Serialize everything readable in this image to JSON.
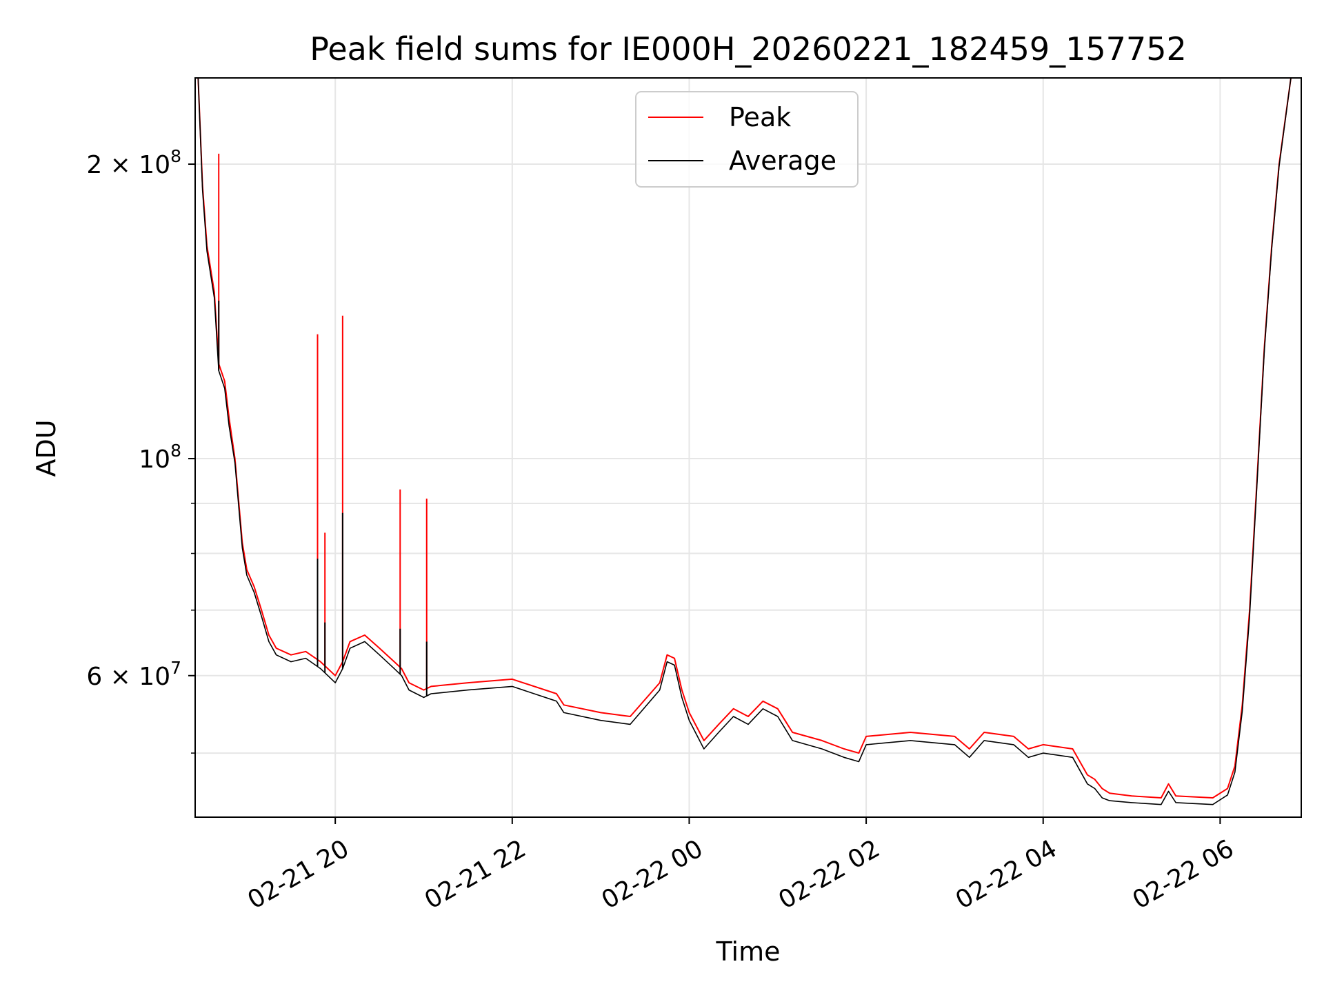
{
  "chart_data": {
    "type": "line",
    "title": "Peak field sums for IE000H_20260221_182459_157752",
    "xlabel": "Time",
    "ylabel": "ADU",
    "y_scale": "log",
    "grid": true,
    "legend_position": "top-center",
    "x_range": [
      "2026-02-21 18:25",
      "2026-02-22 06:55"
    ],
    "ylim": [
      43000000,
      245000000
    ],
    "x_ticks": [
      {
        "value": "2026-02-21 20:00",
        "label": "02-21 20"
      },
      {
        "value": "2026-02-21 22:00",
        "label": "02-21 22"
      },
      {
        "value": "2026-02-22 00:00",
        "label": "02-22 00"
      },
      {
        "value": "2026-02-22 02:00",
        "label": "02-22 02"
      },
      {
        "value": "2026-02-22 04:00",
        "label": "02-22 04"
      },
      {
        "value": "2026-02-22 06:00",
        "label": "02-22 06"
      }
    ],
    "y_ticks": [
      {
        "value": 60000000,
        "mantissa": "6",
        "exponent": "7",
        "form": "m"
      },
      {
        "value": 100000000,
        "exponent": "8",
        "form": "p"
      },
      {
        "value": 200000000,
        "mantissa": "2",
        "exponent": "8",
        "form": "m"
      }
    ],
    "y_minor_ticks": [
      50000000,
      70000000,
      80000000,
      90000000
    ],
    "series": [
      {
        "name": "Peak",
        "color": "#ff0000",
        "points": [
          [
            "2026-02-21 18:27",
            245000000
          ],
          [
            "2026-02-21 18:30",
            190000000
          ],
          [
            "2026-02-21 18:33",
            165000000
          ],
          [
            "2026-02-21 18:38",
            148000000
          ],
          [
            "2026-02-21 18:41",
            125000000
          ],
          [
            "2026-02-21 18:45",
            120000000
          ],
          [
            "2026-02-21 18:48",
            110000000
          ],
          [
            "2026-02-21 18:52",
            100000000
          ],
          [
            "2026-02-21 18:57",
            82000000
          ],
          [
            "2026-02-21 19:00",
            77000000
          ],
          [
            "2026-02-21 19:05",
            74000000
          ],
          [
            "2026-02-21 19:10",
            70000000
          ],
          [
            "2026-02-21 19:15",
            66000000
          ],
          [
            "2026-02-21 19:20",
            64000000
          ],
          [
            "2026-02-21 19:30",
            63000000
          ],
          [
            "2026-02-21 19:40",
            63500000
          ],
          [
            "2026-02-21 19:50",
            62000000
          ],
          [
            "2026-02-21 20:00",
            60000000
          ],
          [
            "2026-02-21 20:05",
            62000000
          ],
          [
            "2026-02-21 20:10",
            65000000
          ],
          [
            "2026-02-21 20:20",
            66000000
          ],
          [
            "2026-02-21 20:30",
            64000000
          ],
          [
            "2026-02-21 20:40",
            62000000
          ],
          [
            "2026-02-21 20:45",
            61000000
          ],
          [
            "2026-02-21 20:50",
            59000000
          ],
          [
            "2026-02-21 21:00",
            58000000
          ],
          [
            "2026-02-21 21:05",
            58500000
          ],
          [
            "2026-02-21 21:30",
            59000000
          ],
          [
            "2026-02-21 22:00",
            59500000
          ],
          [
            "2026-02-21 22:30",
            57500000
          ],
          [
            "2026-02-21 22:35",
            56000000
          ],
          [
            "2026-02-21 23:00",
            55000000
          ],
          [
            "2026-02-21 23:20",
            54500000
          ],
          [
            "2026-02-21 23:40",
            59000000
          ],
          [
            "2026-02-21 23:45",
            63000000
          ],
          [
            "2026-02-21 23:50",
            62500000
          ],
          [
            "2026-02-21 23:55",
            58000000
          ],
          [
            "2026-02-22 00:00",
            55000000
          ],
          [
            "2026-02-22 00:10",
            51500000
          ],
          [
            "2026-02-22 00:20",
            53500000
          ],
          [
            "2026-02-22 00:30",
            55500000
          ],
          [
            "2026-02-22 00:40",
            54500000
          ],
          [
            "2026-02-22 00:50",
            56500000
          ],
          [
            "2026-02-22 01:00",
            55500000
          ],
          [
            "2026-02-22 01:10",
            52500000
          ],
          [
            "2026-02-22 01:30",
            51500000
          ],
          [
            "2026-02-22 01:45",
            50500000
          ],
          [
            "2026-02-22 01:55",
            50000000
          ],
          [
            "2026-02-22 02:00",
            52000000
          ],
          [
            "2026-02-22 02:30",
            52500000
          ],
          [
            "2026-02-22 03:00",
            52000000
          ],
          [
            "2026-02-22 03:10",
            50500000
          ],
          [
            "2026-02-22 03:20",
            52500000
          ],
          [
            "2026-02-22 03:40",
            52000000
          ],
          [
            "2026-02-22 03:50",
            50500000
          ],
          [
            "2026-02-22 04:00",
            51000000
          ],
          [
            "2026-02-22 04:20",
            50500000
          ],
          [
            "2026-02-22 04:30",
            47500000
          ],
          [
            "2026-02-22 04:35",
            47000000
          ],
          [
            "2026-02-22 04:40",
            46000000
          ],
          [
            "2026-02-22 04:45",
            45500000
          ],
          [
            "2026-02-22 05:00",
            45200000
          ],
          [
            "2026-02-22 05:20",
            45000000
          ],
          [
            "2026-02-22 05:25",
            46500000
          ],
          [
            "2026-02-22 05:30",
            45200000
          ],
          [
            "2026-02-22 05:55",
            45000000
          ],
          [
            "2026-02-22 06:05",
            46000000
          ],
          [
            "2026-02-22 06:10",
            48500000
          ],
          [
            "2026-02-22 06:15",
            56000000
          ],
          [
            "2026-02-22 06:20",
            70000000
          ],
          [
            "2026-02-22 06:25",
            95000000
          ],
          [
            "2026-02-22 06:30",
            130000000
          ],
          [
            "2026-02-22 06:35",
            165000000
          ],
          [
            "2026-02-22 06:40",
            200000000
          ],
          [
            "2026-02-22 06:48",
            245000000
          ]
        ],
        "spikes": [
          [
            "2026-02-21 18:41",
            205000000
          ],
          [
            "2026-02-21 19:48",
            134000000
          ],
          [
            "2026-02-21 19:53",
            84000000
          ],
          [
            "2026-02-21 20:05",
            140000000
          ],
          [
            "2026-02-21 20:44",
            93000000
          ],
          [
            "2026-02-21 21:02",
            91000000
          ]
        ]
      },
      {
        "name": "Average",
        "color": "#000000",
        "points": [
          [
            "2026-02-21 18:27",
            245000000
          ],
          [
            "2026-02-21 18:30",
            188000000
          ],
          [
            "2026-02-21 18:33",
            163000000
          ],
          [
            "2026-02-21 18:38",
            146000000
          ],
          [
            "2026-02-21 18:41",
            123000000
          ],
          [
            "2026-02-21 18:45",
            118000000
          ],
          [
            "2026-02-21 18:48",
            108000000
          ],
          [
            "2026-02-21 18:52",
            99000000
          ],
          [
            "2026-02-21 18:57",
            81000000
          ],
          [
            "2026-02-21 19:00",
            76000000
          ],
          [
            "2026-02-21 19:05",
            73000000
          ],
          [
            "2026-02-21 19:10",
            69000000
          ],
          [
            "2026-02-21 19:15",
            65000000
          ],
          [
            "2026-02-21 19:20",
            63000000
          ],
          [
            "2026-02-21 19:30",
            62000000
          ],
          [
            "2026-02-21 19:40",
            62500000
          ],
          [
            "2026-02-21 19:50",
            61000000
          ],
          [
            "2026-02-21 20:00",
            59000000
          ],
          [
            "2026-02-21 20:05",
            61000000
          ],
          [
            "2026-02-21 20:10",
            64000000
          ],
          [
            "2026-02-21 20:20",
            65000000
          ],
          [
            "2026-02-21 20:30",
            63000000
          ],
          [
            "2026-02-21 20:40",
            61000000
          ],
          [
            "2026-02-21 20:45",
            60000000
          ],
          [
            "2026-02-21 20:50",
            58000000
          ],
          [
            "2026-02-21 21:00",
            57000000
          ],
          [
            "2026-02-21 21:05",
            57500000
          ],
          [
            "2026-02-21 21:30",
            58000000
          ],
          [
            "2026-02-21 22:00",
            58500000
          ],
          [
            "2026-02-21 22:30",
            56500000
          ],
          [
            "2026-02-21 22:35",
            55000000
          ],
          [
            "2026-02-21 23:00",
            54000000
          ],
          [
            "2026-02-21 23:20",
            53500000
          ],
          [
            "2026-02-21 23:40",
            58000000
          ],
          [
            "2026-02-21 23:45",
            62000000
          ],
          [
            "2026-02-21 23:50",
            61500000
          ],
          [
            "2026-02-21 23:55",
            57000000
          ],
          [
            "2026-02-22 00:00",
            54000000
          ],
          [
            "2026-02-22 00:10",
            50500000
          ],
          [
            "2026-02-22 00:20",
            52500000
          ],
          [
            "2026-02-22 00:30",
            54500000
          ],
          [
            "2026-02-22 00:40",
            53500000
          ],
          [
            "2026-02-22 00:50",
            55500000
          ],
          [
            "2026-02-22 01:00",
            54500000
          ],
          [
            "2026-02-22 01:10",
            51500000
          ],
          [
            "2026-02-22 01:30",
            50500000
          ],
          [
            "2026-02-22 01:45",
            49500000
          ],
          [
            "2026-02-22 01:55",
            49000000
          ],
          [
            "2026-02-22 02:00",
            51000000
          ],
          [
            "2026-02-22 02:30",
            51500000
          ],
          [
            "2026-02-22 03:00",
            51000000
          ],
          [
            "2026-02-22 03:10",
            49500000
          ],
          [
            "2026-02-22 03:20",
            51500000
          ],
          [
            "2026-02-22 03:40",
            51000000
          ],
          [
            "2026-02-22 03:50",
            49500000
          ],
          [
            "2026-02-22 04:00",
            50000000
          ],
          [
            "2026-02-22 04:20",
            49500000
          ],
          [
            "2026-02-22 04:30",
            46500000
          ],
          [
            "2026-02-22 04:35",
            46000000
          ],
          [
            "2026-02-22 04:40",
            45000000
          ],
          [
            "2026-02-22 04:45",
            44700000
          ],
          [
            "2026-02-22 05:00",
            44500000
          ],
          [
            "2026-02-22 05:20",
            44300000
          ],
          [
            "2026-02-22 05:25",
            45700000
          ],
          [
            "2026-02-22 05:30",
            44500000
          ],
          [
            "2026-02-22 05:55",
            44300000
          ],
          [
            "2026-02-22 06:05",
            45300000
          ],
          [
            "2026-02-22 06:10",
            47800000
          ],
          [
            "2026-02-22 06:15",
            55200000
          ],
          [
            "2026-02-22 06:20",
            69000000
          ],
          [
            "2026-02-22 06:25",
            94000000
          ],
          [
            "2026-02-22 06:30",
            129000000
          ],
          [
            "2026-02-22 06:35",
            164000000
          ],
          [
            "2026-02-22 06:40",
            199000000
          ],
          [
            "2026-02-22 06:48",
            245000000
          ]
        ],
        "spikes": [
          [
            "2026-02-21 18:41",
            145000000
          ],
          [
            "2026-02-21 19:48",
            79000000
          ],
          [
            "2026-02-21 19:53",
            68000000
          ],
          [
            "2026-02-21 20:05",
            88000000
          ],
          [
            "2026-02-21 20:44",
            67000000
          ],
          [
            "2026-02-21 21:02",
            65000000
          ]
        ]
      }
    ]
  }
}
